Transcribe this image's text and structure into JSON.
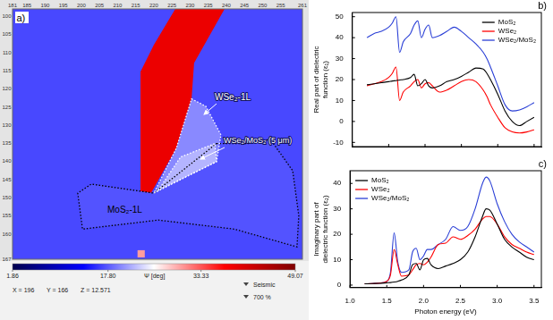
{
  "chart_data": [
    {
      "type": "map",
      "panel": "a)",
      "xlim": [
        181,
        261
      ],
      "ylim": [
        98,
        167
      ],
      "xticks": [
        181,
        185,
        190,
        195,
        200,
        205,
        210,
        215,
        220,
        225,
        230,
        235,
        240,
        245,
        250,
        255,
        261
      ],
      "yticks": [
        100,
        105,
        110,
        115,
        120,
        125,
        130,
        135,
        140,
        145,
        150,
        155,
        160,
        167
      ],
      "psi_background": 17,
      "regions": [
        {
          "psi": 39,
          "outline": [
            [
              226.2,
              97.5
            ],
            [
              239.8,
              97.5
            ],
            [
              231.1,
              112.9
            ],
            [
              230.4,
              122.8
            ],
            [
              226.2,
              136.4
            ],
            [
              218.8,
              149.5
            ],
            [
              216.3,
              148.8
            ],
            [
              216.3,
              115.3
            ],
            [
              220.0,
              107.9
            ]
          ]
        },
        {
          "label": "MoS₂-1L",
          "psi": 17.5,
          "color": "#000000",
          "line_style": "dotted",
          "outline": [
            [
              237.3,
              135.1
            ],
            [
              245.9,
              135.1
            ],
            [
              252.1,
              133.9
            ],
            [
              258.3,
              142.6
            ],
            [
              260.0,
              155.0
            ],
            [
              259.5,
              163.6
            ],
            [
              242.2,
              158.7
            ],
            [
              221.2,
              156.2
            ],
            [
              200.3,
              158.7
            ],
            [
              199.0,
              148.8
            ],
            [
              202.7,
              146.3
            ],
            [
              220.0,
              148.8
            ]
          ]
        },
        {
          "label": "WSe₂-1L",
          "psi": 20,
          "color": "#ffffff",
          "line_style": "dotted",
          "outline": [
            [
              230.4,
              122.8
            ],
            [
              234.3,
              124.8
            ],
            [
              238.5,
              132.7
            ],
            [
              237.3,
              140.1
            ],
            [
              220.0,
              148.8
            ],
            [
              226.2,
              136.4
            ]
          ]
        },
        {
          "label": "WSe₂/MoS₂ (5 μm)",
          "psi": 22,
          "color": "#ffffff",
          "line_style": "dotted",
          "outline": [
            [
              221.2,
              148.0
            ],
            [
              227.4,
              138.8
            ],
            [
              236.8,
              135.1
            ],
            [
              237.3,
              140.1
            ]
          ]
        },
        {
          "psi": 30,
          "outline": [
            [
              215.5,
              164.5
            ],
            [
              217.5,
              164.5
            ],
            [
              217.5,
              166.5
            ],
            [
              215.5,
              166.5
            ]
          ]
        }
      ],
      "colorbar": {
        "label": "Ψ [deg]",
        "colormap": "Seismic",
        "range": [
          1.86,
          49.07
        ],
        "ticks": [
          1.86,
          {
            "value": 17.8,
            "label": "17.80"
          },
          33.33,
          49.07
        ]
      },
      "status": [
        "X = 196",
        "Y = 166",
        "Z = 12.571"
      ],
      "zoom": "700 %"
    },
    {
      "type": "line",
      "panel": "b)",
      "y_label": "Real part of dielectric function (ε₁)",
      "x": [
        1.2,
        1.3,
        1.4,
        1.5,
        1.55,
        1.6,
        1.65,
        1.7,
        1.8,
        1.85,
        1.9,
        1.95,
        2.0,
        2.05,
        2.1,
        2.2,
        2.3,
        2.4,
        2.5,
        2.6,
        2.7,
        2.8,
        2.85,
        2.9,
        3.0,
        3.1,
        3.2,
        3.3,
        3.4,
        3.5
      ],
      "series": [
        {
          "name": "MoS₂",
          "color": "#000000",
          "values": [
            17.5,
            18,
            18.5,
            19,
            19.3,
            19.5,
            19.8,
            20,
            21,
            22.5,
            17,
            18,
            20,
            17,
            16,
            17,
            19,
            20,
            21.5,
            23.5,
            25.5,
            25,
            23,
            20,
            13,
            5,
            0,
            -2,
            0,
            2
          ]
        },
        {
          "name": "WSe₂",
          "color": "#ff0000",
          "values": [
            17,
            18,
            19,
            21,
            23,
            26,
            10,
            14,
            17,
            19,
            20,
            16,
            18,
            18.5,
            17,
            14,
            15,
            17,
            19,
            20,
            19,
            15,
            12,
            8,
            2,
            -3,
            -5,
            -5.5,
            -5,
            -4
          ]
        },
        {
          "name": "WSe₂/MoS₂",
          "color": "#2a3fd6",
          "values": [
            40,
            42,
            43,
            45,
            47,
            50,
            33,
            38,
            42,
            46,
            48,
            40,
            44,
            46,
            40,
            41,
            43,
            45,
            43,
            40,
            37,
            33,
            30,
            26,
            17,
            8,
            5,
            5.5,
            7,
            9
          ]
        }
      ],
      "xlim": [
        1.0,
        3.6
      ],
      "xticks": [
        {
          "value": 1,
          "label": "1.0"
        },
        1.5,
        {
          "value": 2,
          "label": "2.0"
        },
        2.5,
        {
          "value": 3,
          "label": "3.0"
        },
        3.5
      ],
      "ylim": [
        -12,
        52
      ],
      "yticks": [
        -10,
        0,
        10,
        20,
        30,
        40,
        50
      ],
      "grid": false,
      "legend": "upper right",
      "tick_labels": "y"
    },
    {
      "type": "line",
      "panel": "c)",
      "x_label": "Photon energy (eV)",
      "y_label": "Imaginary part of dielectric function (ε₂)",
      "x": [
        1.2,
        1.3,
        1.4,
        1.5,
        1.55,
        1.6,
        1.65,
        1.7,
        1.8,
        1.85,
        1.9,
        1.95,
        2.0,
        2.05,
        2.1,
        2.2,
        2.3,
        2.4,
        2.5,
        2.6,
        2.7,
        2.8,
        2.85,
        2.9,
        3.0,
        3.1,
        3.2,
        3.3,
        3.4,
        3.5
      ],
      "series": [
        {
          "name": "MoS₂",
          "color": "#000000",
          "values": [
            0.5,
            0.6,
            0.7,
            0.9,
            1,
            1.2,
            1.5,
            2,
            4,
            8,
            8.5,
            6,
            10,
            10.5,
            8,
            6.5,
            7.5,
            8.5,
            10,
            13,
            19,
            27,
            30,
            29.5,
            24,
            18,
            15,
            13,
            11,
            10
          ]
        },
        {
          "name": "WSe₂",
          "color": "#ff0000",
          "values": [
            0.5,
            0.6,
            0.8,
            1.5,
            4,
            14,
            8,
            3.5,
            4,
            6,
            8,
            8.5,
            8,
            9,
            11,
            16,
            16.5,
            19,
            18,
            19.5,
            22,
            26,
            27,
            27,
            24,
            19,
            16,
            14.5,
            13,
            12
          ]
        },
        {
          "name": "WSe₂/MoS₂",
          "color": "#2a3fd6",
          "values": [
            0.5,
            0.6,
            0.8,
            1.5,
            5,
            20.5,
            9,
            5,
            6,
            13,
            14.5,
            10,
            11.5,
            14,
            14,
            16,
            18,
            23,
            21.5,
            23,
            30,
            40,
            42.5,
            41,
            32,
            25,
            20,
            17,
            15,
            13
          ]
        }
      ],
      "xlim": [
        1.0,
        3.6
      ],
      "xticks": [
        {
          "value": 1,
          "label": "1.0"
        },
        1.5,
        {
          "value": 2,
          "label": "2.0"
        },
        2.5,
        {
          "value": 3,
          "label": "3.0"
        },
        3.5
      ],
      "ylim": [
        -1,
        45
      ],
      "yticks": [
        0,
        10,
        20,
        30,
        40
      ],
      "grid": false,
      "legend": "upper left"
    }
  ]
}
